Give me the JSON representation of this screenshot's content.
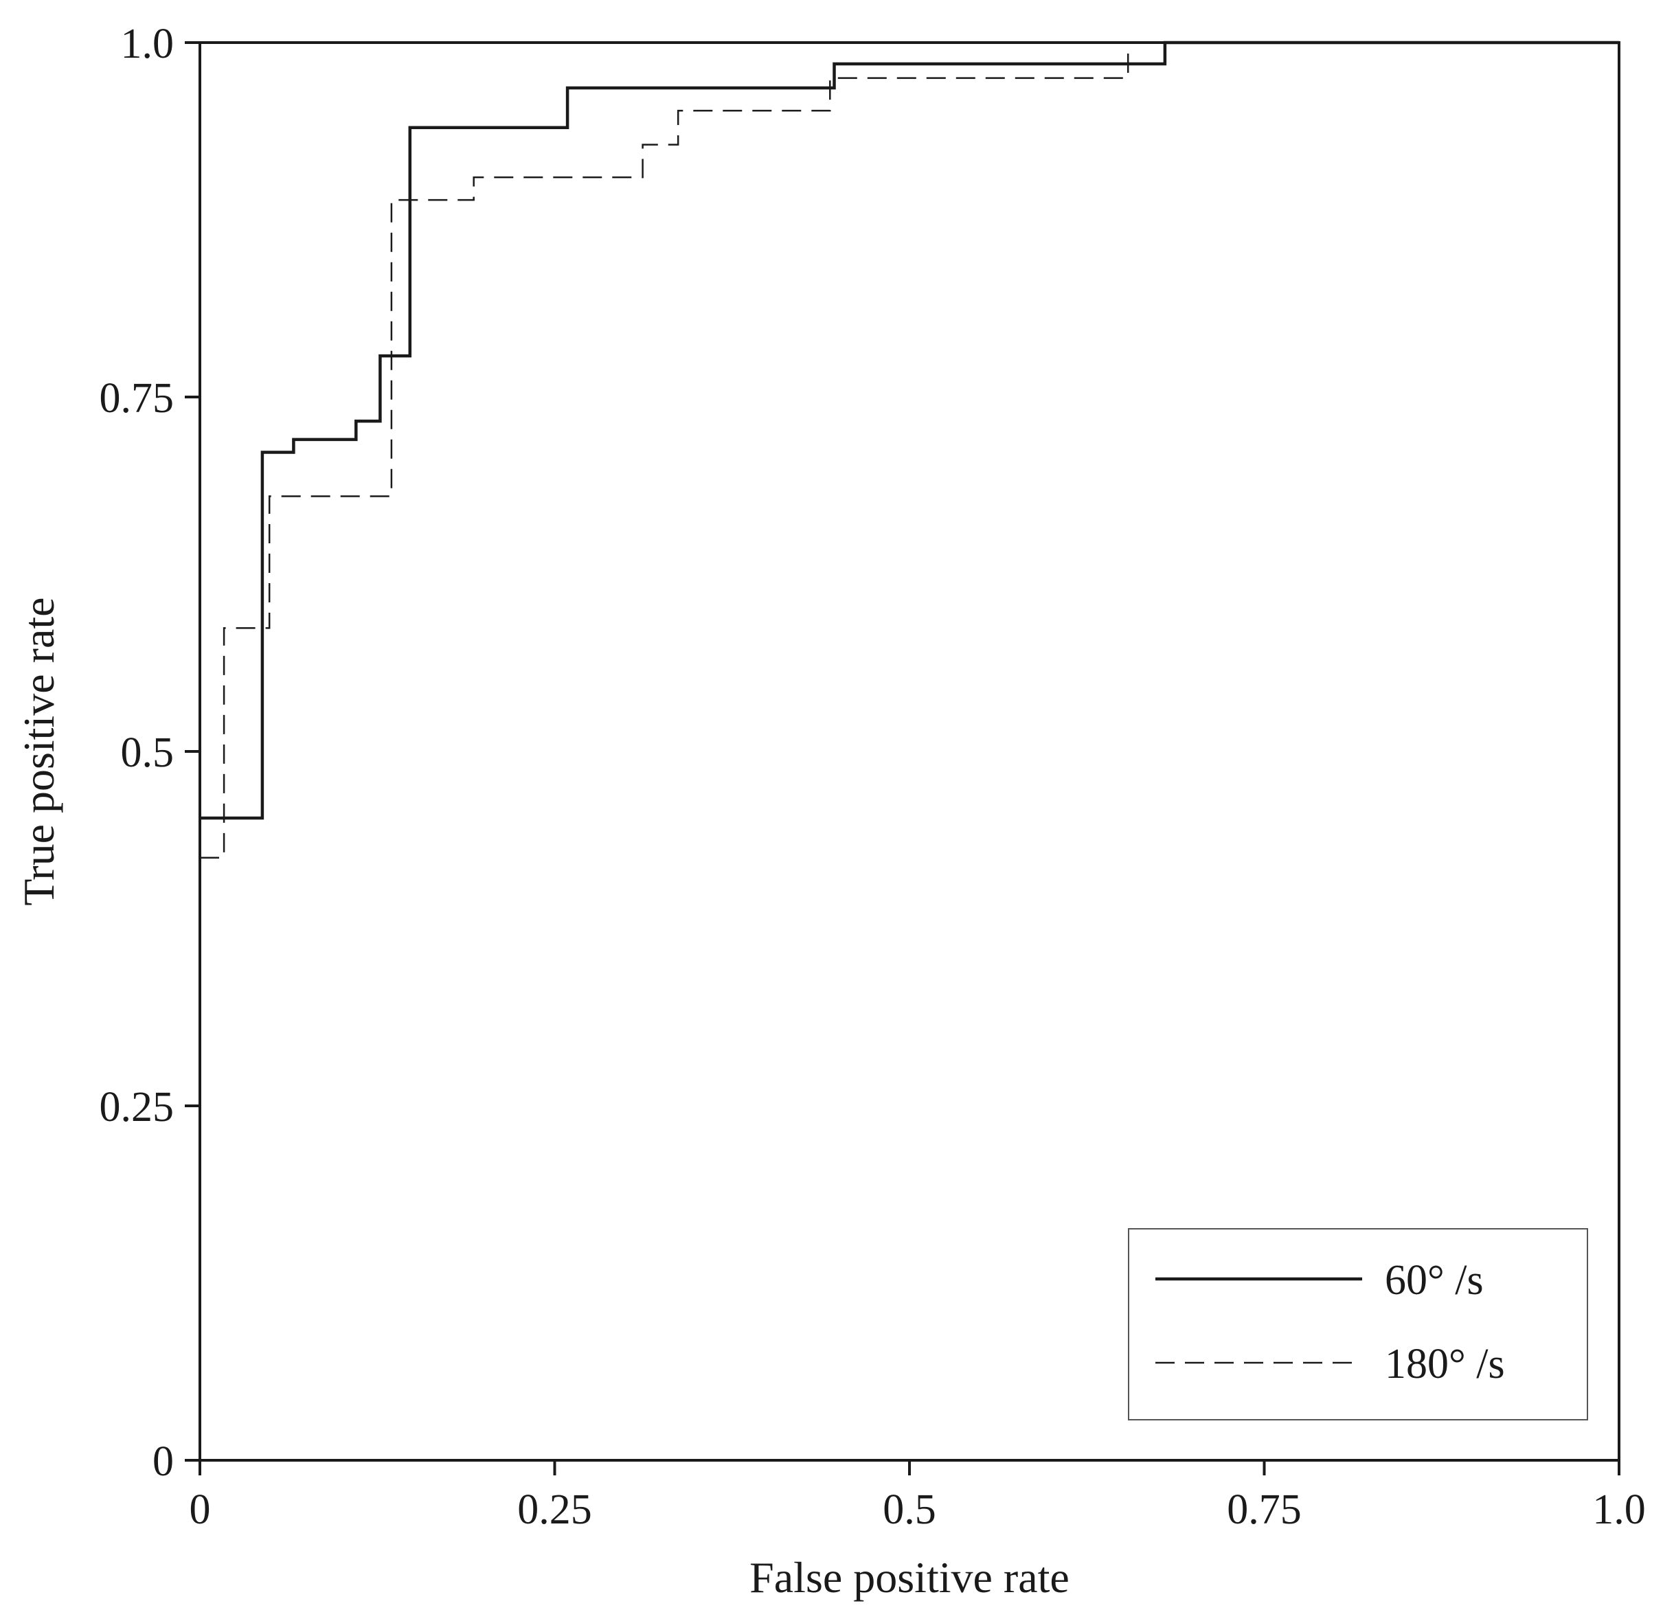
{
  "chart_data": {
    "type": "line",
    "title": "",
    "xlabel": "False positive rate",
    "ylabel": "True positive rate",
    "xlim": [
      0,
      1
    ],
    "ylim": [
      0,
      1
    ],
    "x_ticks": [
      0,
      0.25,
      0.5,
      0.75,
      1.0
    ],
    "x_tick_labels": [
      "0",
      "0.25",
      "0.5",
      "0.75",
      "1.0"
    ],
    "y_ticks": [
      0,
      0.25,
      0.5,
      0.75,
      1.0
    ],
    "y_tick_labels": [
      "0",
      "0.25",
      "0.5",
      "0.75",
      "1.0"
    ],
    "grid": false,
    "legend_position": "bottom-right",
    "series": [
      {
        "name": "60°  /s",
        "style": "solid",
        "color": "#1a1a1a",
        "step_points": [
          [
            0,
            0.453
          ],
          [
            0.044,
            0.453
          ],
          [
            0.044,
            0.711
          ],
          [
            0.066,
            0.711
          ],
          [
            0.066,
            0.72
          ],
          [
            0.11,
            0.72
          ],
          [
            0.11,
            0.733
          ],
          [
            0.127,
            0.733
          ],
          [
            0.127,
            0.779
          ],
          [
            0.148,
            0.779
          ],
          [
            0.148,
            0.94
          ],
          [
            0.259,
            0.94
          ],
          [
            0.259,
            0.968
          ],
          [
            0.447,
            0.968
          ],
          [
            0.447,
            0.985
          ],
          [
            0.68,
            0.985
          ],
          [
            0.68,
            1.0
          ],
          [
            1.0,
            1.0
          ]
        ]
      },
      {
        "name": "180°  /s",
        "style": "dashed",
        "color": "#1a1a1a",
        "step_points": [
          [
            0,
            0.425
          ],
          [
            0.017,
            0.425
          ],
          [
            0.017,
            0.587
          ],
          [
            0.049,
            0.587
          ],
          [
            0.049,
            0.68
          ],
          [
            0.135,
            0.68
          ],
          [
            0.135,
            0.889
          ],
          [
            0.193,
            0.889
          ],
          [
            0.193,
            0.905
          ],
          [
            0.312,
            0.905
          ],
          [
            0.312,
            0.928
          ],
          [
            0.337,
            0.928
          ],
          [
            0.337,
            0.952
          ],
          [
            0.444,
            0.952
          ],
          [
            0.444,
            0.975
          ],
          [
            0.654,
            0.975
          ],
          [
            0.654,
            1.0
          ],
          [
            1.0,
            1.0
          ]
        ]
      }
    ]
  }
}
